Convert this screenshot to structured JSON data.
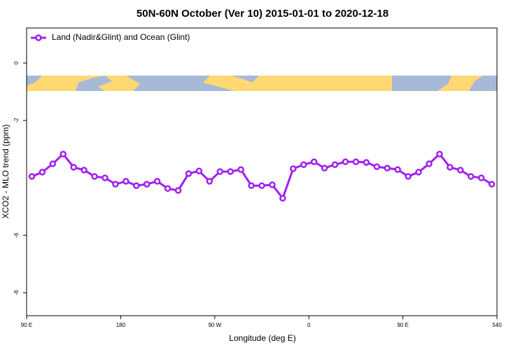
{
  "chart_data": {
    "type": "line",
    "title": "50N-60N October (Ver 10)   2015-01-01 to 2020-12-18",
    "x_label": "Longitude (deg E)",
    "y_label": "XCO2 - MLO trend (ppm)",
    "xlim": [
      90,
      540
    ],
    "xticks": [
      {
        "value": 90,
        "label": "90 E"
      },
      180,
      {
        "value": 270,
        "label": "90 W"
      },
      {
        "value": 360,
        "label": "0"
      },
      {
        "value": 450,
        "label": "90 E"
      },
      540
    ],
    "ylim": [
      -8.8,
      1.22
    ],
    "yticks": [
      0,
      -2,
      -6,
      -8
    ],
    "legend_position": "top-left",
    "x": [
      95,
      105,
      115,
      125,
      135,
      145,
      155,
      165,
      175,
      185,
      195,
      205,
      215,
      225,
      235,
      245,
      255,
      265,
      275,
      285,
      295,
      305,
      315,
      325,
      335,
      345,
      355,
      365,
      375,
      385,
      395,
      405,
      415,
      425,
      435,
      445,
      455,
      465,
      475,
      485,
      495,
      505,
      515,
      525,
      535
    ],
    "series": [
      {
        "name": "Land (Nadir&Glint) and Ocean (Glint)",
        "color": "#a020f0",
        "values": [
          -3.95,
          -3.8,
          -3.51,
          -3.17,
          -3.63,
          -3.73,
          -3.95,
          -4.0,
          -4.22,
          -4.12,
          -4.27,
          -4.22,
          -4.12,
          -4.37,
          -4.44,
          -3.85,
          -3.76,
          -4.12,
          -3.78,
          -3.78,
          -3.71,
          -4.27,
          -4.27,
          -4.24,
          -4.71,
          -3.68,
          -3.54,
          -3.44,
          -3.66,
          -3.54,
          -3.44,
          -3.44,
          -3.46,
          -3.61,
          -3.66,
          -3.71,
          -3.95,
          -3.8,
          -3.51,
          -3.17,
          -3.63,
          -3.73,
          -3.95,
          -4.0,
          -4.22
        ]
      }
    ]
  }
}
